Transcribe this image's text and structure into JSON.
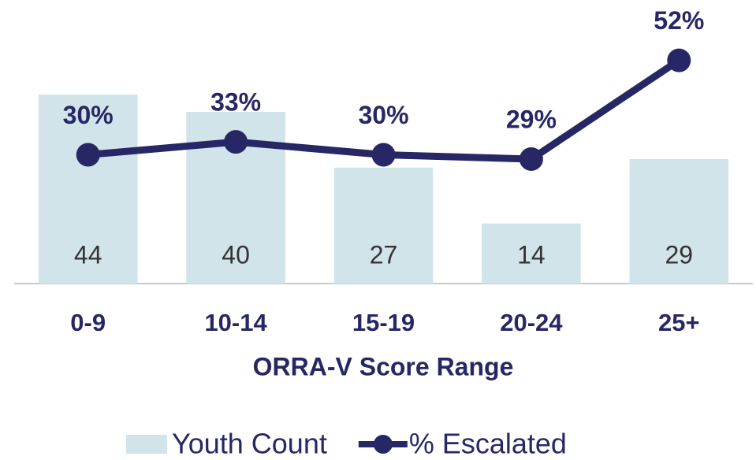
{
  "chart_data": {
    "type": "combo",
    "x_label": "ORRA-V Score Range",
    "categories": [
      "0-9",
      "10-14",
      "15-19",
      "20-24",
      "25+"
    ],
    "series": [
      {
        "name": "Youth Count",
        "type": "bar",
        "color": "#d0e4ea",
        "values": [
          44,
          40,
          27,
          14,
          29
        ]
      },
      {
        "name": "% Escalated",
        "type": "line",
        "axis": "y2",
        "color": "#272766",
        "values": [
          30,
          33,
          30,
          29,
          52
        ],
        "value_labels": [
          "30%",
          "33%",
          "30%",
          "29%",
          "52%"
        ]
      }
    ],
    "ylim": [
      0,
      60
    ],
    "y2lim": [
      0,
      60
    ],
    "legend": "bottom"
  }
}
